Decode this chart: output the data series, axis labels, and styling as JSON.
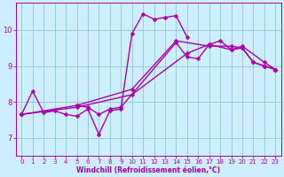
{
  "xlabel": "Windchill (Refroidissement éolien,°C)",
  "xlim": [
    -0.5,
    23.5
  ],
  "ylim": [
    6.5,
    10.75
  ],
  "xticks": [
    0,
    1,
    2,
    3,
    4,
    5,
    6,
    7,
    8,
    9,
    10,
    11,
    12,
    13,
    14,
    15,
    16,
    17,
    18,
    19,
    20,
    21,
    22,
    23
  ],
  "yticks": [
    7,
    8,
    9,
    10
  ],
  "line_color": "#aa00aa",
  "bg_color": "#cceeff",
  "grid_color": "#99cccc",
  "series": [
    {
      "x": [
        0,
        1,
        2,
        3,
        4,
        5,
        6,
        7,
        8,
        9,
        10,
        11,
        12,
        13,
        14,
        15
      ],
      "y": [
        7.65,
        8.3,
        7.7,
        7.75,
        7.65,
        7.6,
        7.8,
        7.1,
        7.75,
        7.8,
        9.9,
        10.45,
        10.3,
        10.35,
        10.4,
        9.8
      ]
    },
    {
      "x": [
        0,
        5,
        10,
        14,
        17,
        19,
        20,
        21,
        22,
        23
      ],
      "y": [
        7.65,
        7.9,
        8.35,
        9.7,
        9.55,
        9.55,
        9.5,
        9.1,
        9.0,
        8.9
      ]
    },
    {
      "x": [
        0,
        5,
        10,
        15,
        17,
        19,
        20,
        22,
        23
      ],
      "y": [
        7.65,
        7.85,
        8.2,
        9.35,
        9.6,
        9.45,
        9.55,
        9.1,
        8.9
      ]
    },
    {
      "x": [
        5,
        6,
        7,
        8,
        9,
        14,
        15,
        16,
        17,
        18,
        19,
        20,
        21,
        22,
        23
      ],
      "y": [
        7.9,
        7.85,
        7.65,
        7.8,
        7.85,
        9.65,
        9.25,
        9.2,
        9.6,
        9.7,
        9.45,
        9.5,
        9.1,
        9.0,
        8.9
      ]
    }
  ],
  "line_width": 1.0,
  "marker_size": 2.5
}
